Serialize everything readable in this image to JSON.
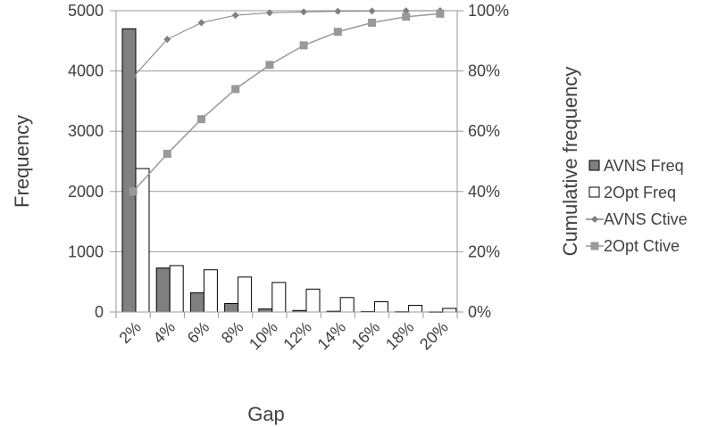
{
  "chart_data": {
    "type": "bar",
    "categories": [
      "2%",
      "4%",
      "6%",
      "8%",
      "10%",
      "12%",
      "14%",
      "16%",
      "18%",
      "20%"
    ],
    "xlabel": "Gap",
    "ylabel": "Frequency",
    "y2label": "Cumulative frequency",
    "ylim": [
      0,
      5000
    ],
    "y2lim": [
      0,
      100
    ],
    "yticks": [
      "0",
      "1000",
      "2000",
      "3000",
      "4000",
      "5000"
    ],
    "y2ticks": [
      "0%",
      "20%",
      "40%",
      "60%",
      "80%",
      "100%"
    ],
    "grid": true,
    "legend_position": "right",
    "series": [
      {
        "name": "AVNS Freq",
        "type": "bar",
        "axis": "left",
        "color": "#808080",
        "values": [
          4700,
          730,
          320,
          140,
          50,
          25,
          12,
          8,
          5,
          3
        ]
      },
      {
        "name": "2Opt Freq",
        "type": "bar",
        "axis": "left",
        "color": "#ffffff",
        "values": [
          2380,
          770,
          700,
          580,
          490,
          380,
          240,
          170,
          110,
          60
        ]
      },
      {
        "name": "AVNS Ctive",
        "type": "line",
        "axis": "right",
        "marker": "diamond",
        "color": "#808080",
        "values": [
          78,
          90.5,
          96,
          98.5,
          99.3,
          99.6,
          99.8,
          99.9,
          99.95,
          100
        ]
      },
      {
        "name": "2Opt Ctive",
        "type": "line",
        "axis": "right",
        "marker": "square",
        "color": "#999999",
        "values": [
          40,
          52.5,
          64,
          74,
          82,
          88.5,
          93,
          96,
          98,
          99
        ]
      }
    ]
  }
}
